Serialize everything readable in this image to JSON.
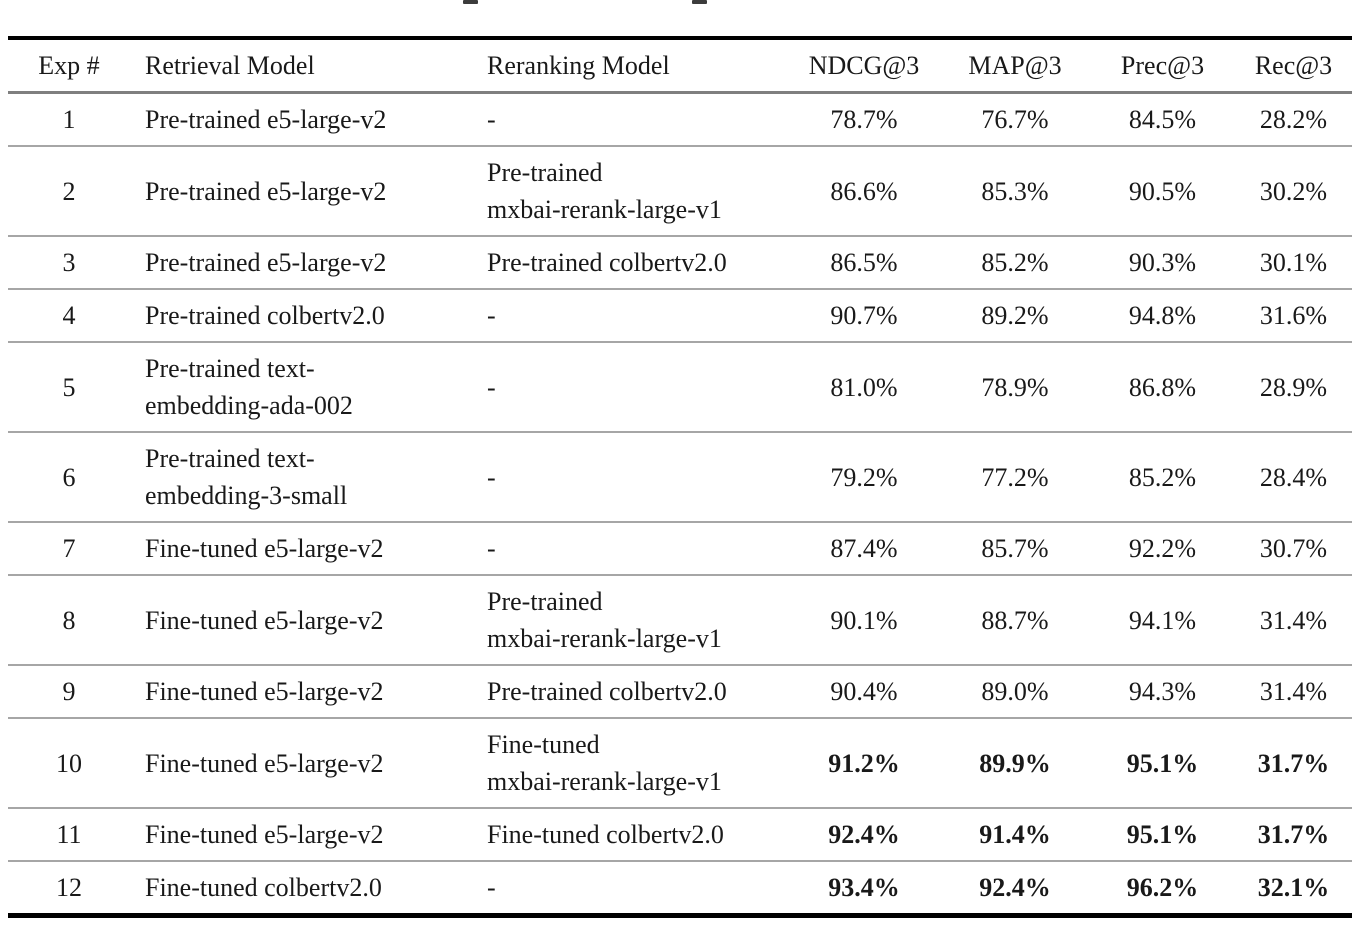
{
  "table": {
    "columns": [
      {
        "key": "exp",
        "label": "Exp #"
      },
      {
        "key": "retrieval",
        "label": "Retrieval Model"
      },
      {
        "key": "rerank",
        "label": "Reranking Model"
      },
      {
        "key": "ndcg",
        "label": "NDCG@3"
      },
      {
        "key": "map",
        "label": "MAP@3"
      },
      {
        "key": "prec",
        "label": "Prec@3"
      },
      {
        "key": "rec",
        "label": "Rec@3"
      }
    ],
    "rows": [
      {
        "exp": "1",
        "retrieval": "Pre-trained e5-large-v2",
        "rerank": "-",
        "ndcg": "78.7%",
        "map": "76.7%",
        "prec": "84.5%",
        "rec": "28.2%",
        "bold_metrics": false
      },
      {
        "exp": "2",
        "retrieval": "Pre-trained e5-large-v2",
        "rerank": "Pre-trained\nmxbai-rerank-large-v1",
        "ndcg": "86.6%",
        "map": "85.3%",
        "prec": "90.5%",
        "rec": "30.2%",
        "bold_metrics": false
      },
      {
        "exp": "3",
        "retrieval": "Pre-trained e5-large-v2",
        "rerank": "Pre-trained colbertv2.0",
        "ndcg": "86.5%",
        "map": "85.2%",
        "prec": "90.3%",
        "rec": "30.1%",
        "bold_metrics": false
      },
      {
        "exp": "4",
        "retrieval": "Pre-trained colbertv2.0",
        "rerank": "-",
        "ndcg": "90.7%",
        "map": "89.2%",
        "prec": "94.8%",
        "rec": "31.6%",
        "bold_metrics": false
      },
      {
        "exp": "5",
        "retrieval": "Pre-trained text-\nembedding-ada-002",
        "rerank": "-",
        "ndcg": "81.0%",
        "map": "78.9%",
        "prec": "86.8%",
        "rec": "28.9%",
        "bold_metrics": false
      },
      {
        "exp": "6",
        "retrieval": "Pre-trained text-\nembedding-3-small",
        "rerank": "-",
        "ndcg": "79.2%",
        "map": "77.2%",
        "prec": "85.2%",
        "rec": "28.4%",
        "bold_metrics": false
      },
      {
        "exp": "7",
        "retrieval": "Fine-tuned e5-large-v2",
        "rerank": "-",
        "ndcg": "87.4%",
        "map": "85.7%",
        "prec": "92.2%",
        "rec": "30.7%",
        "bold_metrics": false
      },
      {
        "exp": "8",
        "retrieval": "Fine-tuned e5-large-v2",
        "rerank": "Pre-trained\nmxbai-rerank-large-v1",
        "ndcg": "90.1%",
        "map": "88.7%",
        "prec": "94.1%",
        "rec": "31.4%",
        "bold_metrics": false
      },
      {
        "exp": "9",
        "retrieval": "Fine-tuned e5-large-v2",
        "rerank": "Pre-trained colbertv2.0",
        "ndcg": "90.4%",
        "map": "89.0%",
        "prec": "94.3%",
        "rec": "31.4%",
        "bold_metrics": false
      },
      {
        "exp": "10",
        "retrieval": "Fine-tuned e5-large-v2",
        "rerank": "Fine-tuned\nmxbai-rerank-large-v1",
        "ndcg": "91.2%",
        "map": "89.9%",
        "prec": "95.1%",
        "rec": "31.7%",
        "bold_metrics": true
      },
      {
        "exp": "11",
        "retrieval": "Fine-tuned e5-large-v2",
        "rerank": "Fine-tuned colbertv2.0",
        "ndcg": "92.4%",
        "map": "91.4%",
        "prec": "95.1%",
        "rec": "31.7%",
        "bold_metrics": true
      },
      {
        "exp": "12",
        "retrieval": "Fine-tuned colbertv2.0",
        "rerank": "-",
        "ndcg": "93.4%",
        "map": "92.4%",
        "prec": "96.2%",
        "rec": "32.1%",
        "bold_metrics": true
      }
    ]
  }
}
